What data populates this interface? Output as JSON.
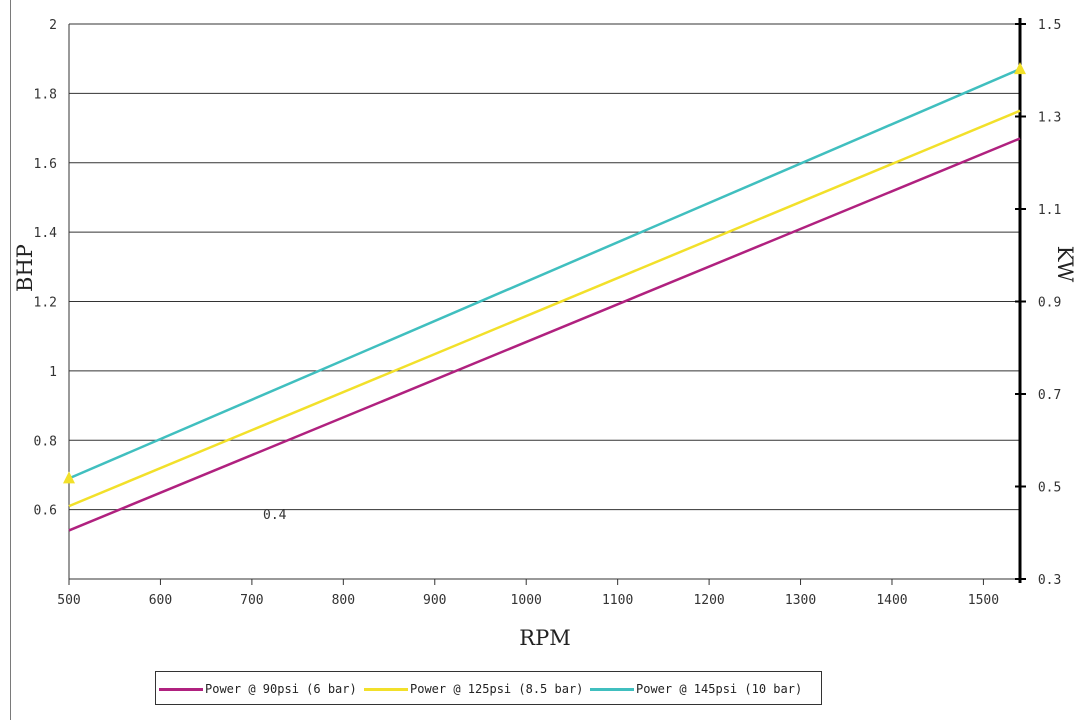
{
  "chart_data": {
    "type": "line",
    "xlabel": "RPM",
    "ylabel": "BHP",
    "y2label": "KW",
    "xlim": [
      500,
      1540
    ],
    "ylim": [
      0.4,
      2
    ],
    "y2lim": [
      0.3,
      1.5
    ],
    "x_ticks": [
      "500",
      "600",
      "700",
      "800",
      "900",
      "1000",
      "1100",
      "1200",
      "1300",
      "1400",
      "1500"
    ],
    "y_ticks": [
      "0.6",
      "0.8",
      "1",
      "1.2",
      "1.4",
      "1.6",
      "1.8",
      "2"
    ],
    "y2_ticks": [
      "0.3",
      "0.5",
      "0.7",
      "0.9",
      "1.1",
      "1.3",
      "1.5"
    ],
    "annotation": "0.4",
    "grid": true,
    "legend_position": "bottom",
    "series": [
      {
        "name": "Power @ 90psi (6 bar)",
        "color": "#b0217f",
        "x": [
          500,
          1540
        ],
        "y": [
          0.54,
          1.67
        ]
      },
      {
        "name": "Power @ 125psi (8.5 bar)",
        "color": "#f2e02a",
        "x": [
          500,
          1540
        ],
        "y": [
          0.61,
          1.75
        ]
      },
      {
        "name": "Power @ 145psi (10 bar)",
        "color": "#40bfbf",
        "x": [
          500,
          1540
        ],
        "y": [
          0.69,
          1.87
        ]
      }
    ],
    "markers": [
      {
        "x": 500,
        "y": 0.69,
        "color": "#f2e02a",
        "shape": "triangle"
      },
      {
        "x": 1540,
        "y": 1.87,
        "color": "#f2e02a",
        "shape": "triangle"
      }
    ]
  }
}
